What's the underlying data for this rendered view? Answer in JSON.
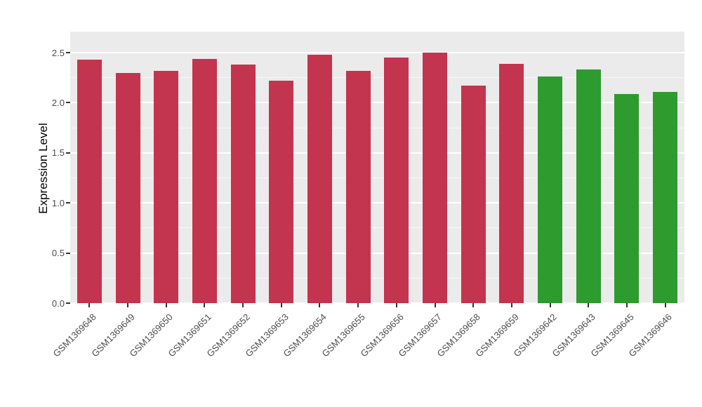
{
  "chart_data": {
    "type": "bar",
    "title": "",
    "xlabel": "",
    "ylabel": "Expression Level",
    "ylim": [
      0,
      2.5
    ],
    "yticks": [
      "0.0",
      "0.5",
      "1.0",
      "1.5",
      "2.0",
      "2.5"
    ],
    "grid": "on",
    "legend_position": "none",
    "categories": [
      "GSM1369648",
      "GSM1369649",
      "GSM1369650",
      "GSM1369651",
      "GSM1369652",
      "GSM1369653",
      "GSM1369654",
      "GSM1369655",
      "GSM1369656",
      "GSM1369657",
      "GSM1369658",
      "GSM1369659",
      "GSM1369642",
      "GSM1369643",
      "GSM1369645",
      "GSM1369646"
    ],
    "values": [
      2.43,
      2.3,
      2.32,
      2.44,
      2.38,
      2.22,
      2.48,
      2.32,
      2.45,
      2.5,
      2.17,
      2.39,
      2.26,
      2.33,
      2.09,
      2.11
    ],
    "groups": [
      "red",
      "red",
      "red",
      "red",
      "red",
      "red",
      "red",
      "red",
      "red",
      "red",
      "red",
      "red",
      "green",
      "green",
      "green",
      "green"
    ],
    "group_colors": {
      "red": "#C3344F",
      "green": "#2E9B2F"
    },
    "panel_bg": "#EBEBEB",
    "grid_major_color": "#FFFFFF",
    "grid_minor_color": "#F7F7F7",
    "tick_label_color": "#4D4D4D",
    "axis_title_color": "#000000",
    "tick_mark_color": "#333333"
  }
}
